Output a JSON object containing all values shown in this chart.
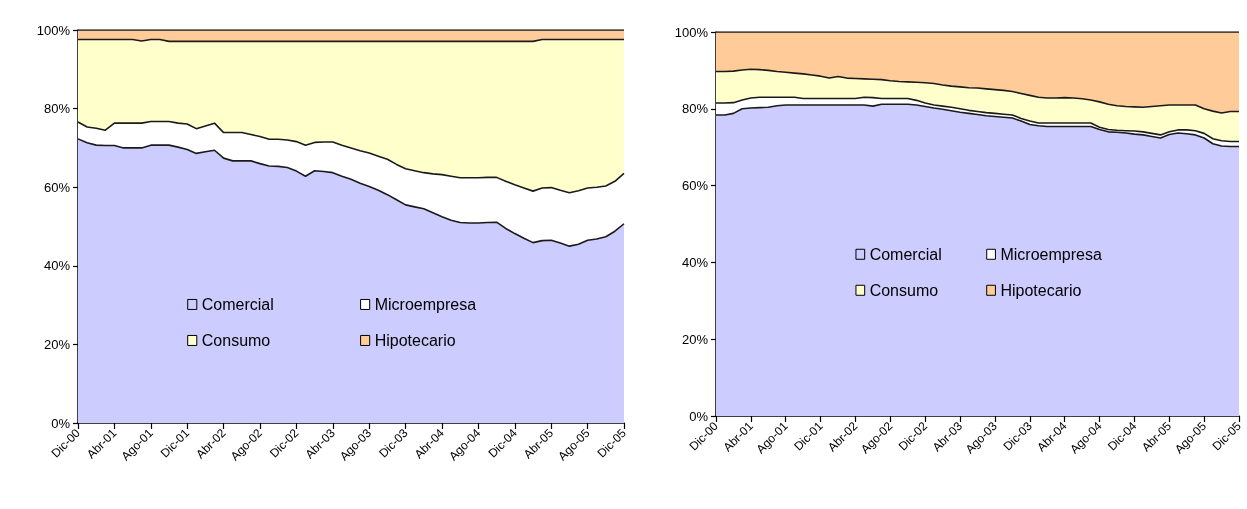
{
  "chart_data": [
    {
      "type": "area",
      "stacked": true,
      "categories": [
        "Dic-00",
        null,
        null,
        null,
        "Abr-01",
        null,
        null,
        null,
        "Ago-01",
        null,
        null,
        null,
        "Dic-01",
        null,
        null,
        null,
        "Abr-02",
        null,
        null,
        null,
        "Ago-02",
        null,
        null,
        null,
        "Dic-02",
        null,
        null,
        null,
        "Abr-03",
        null,
        null,
        null,
        "Ago-03",
        null,
        null,
        null,
        "Dic-03",
        null,
        null,
        null,
        "Abr-04",
        null,
        null,
        null,
        "Ago-04",
        null,
        null,
        null,
        "Dic-04",
        null,
        null,
        null,
        "Abr-05",
        null,
        null,
        null,
        "Ago-05",
        null,
        null,
        null,
        "Dic-05"
      ],
      "series": [
        {
          "name": "Comercial",
          "color": "#ccccff",
          "values": [
            72.3,
            71.3,
            70.7,
            70.6,
            70.6,
            70.0,
            70.0,
            70.0,
            70.7,
            70.7,
            70.7,
            70.2,
            69.6,
            68.6,
            69.0,
            69.4,
            67.4,
            66.7,
            66.7,
            66.7,
            66.0,
            65.4,
            65.3,
            65.0,
            64.1,
            62.8,
            64.2,
            64.0,
            63.7,
            62.8,
            62.0,
            61.0,
            60.2,
            59.2,
            58.1,
            56.8,
            55.5,
            55.0,
            54.5,
            53.5,
            52.5,
            51.6,
            51.0,
            50.9,
            50.9,
            51.0,
            51.1,
            49.5,
            48.2,
            47.0,
            45.9,
            46.4,
            46.5,
            45.8,
            45.0,
            45.5,
            46.5,
            46.8,
            47.4,
            48.8,
            50.7
          ]
        },
        {
          "name": "Microempresa",
          "color": "#ffffff",
          "values": [
            4.3,
            4.0,
            4.3,
            3.9,
            5.7,
            6.3,
            6.3,
            6.3,
            6.0,
            6.0,
            6.0,
            6.1,
            6.5,
            6.3,
            6.6,
            6.9,
            6.5,
            7.2,
            7.2,
            6.7,
            6.9,
            6.8,
            6.9,
            7.0,
            7.5,
            7.9,
            7.2,
            7.5,
            7.8,
            7.9,
            8.0,
            8.3,
            8.5,
            8.7,
            9.0,
            9.0,
            9.2,
            9.2,
            9.2,
            9.9,
            10.7,
            11.2,
            11.4,
            11.5,
            11.5,
            11.5,
            11.4,
            12.0,
            12.4,
            12.8,
            13.1,
            13.4,
            13.4,
            13.4,
            13.6,
            13.6,
            13.3,
            13.2,
            12.9,
            12.7,
            12.8
          ]
        },
        {
          "name": "Consumo",
          "color": "#ffffcc",
          "values": [
            21.0,
            22.3,
            22.6,
            23.1,
            21.3,
            21.3,
            21.3,
            20.9,
            20.9,
            20.9,
            20.4,
            20.8,
            21.0,
            22.2,
            21.5,
            20.8,
            23.2,
            23.2,
            23.2,
            23.7,
            24.2,
            24.9,
            24.9,
            25.1,
            25.5,
            26.4,
            25.7,
            25.6,
            25.6,
            26.4,
            27.1,
            27.8,
            28.4,
            29.2,
            30.0,
            31.3,
            32.4,
            32.9,
            33.4,
            33.7,
            33.9,
            34.3,
            34.7,
            34.7,
            34.7,
            34.6,
            34.6,
            35.6,
            36.5,
            37.3,
            38.1,
            37.8,
            37.7,
            38.4,
            39.0,
            38.5,
            37.8,
            37.6,
            37.3,
            36.1,
            34.1
          ]
        },
        {
          "name": "Hipotecario",
          "color": "#ffcc99",
          "values": [
            2.4,
            2.4,
            2.4,
            2.4,
            2.4,
            2.4,
            2.4,
            2.8,
            2.4,
            2.4,
            2.9,
            2.9,
            2.9,
            2.9,
            2.9,
            2.9,
            2.9,
            2.9,
            2.9,
            2.9,
            2.9,
            2.9,
            2.9,
            2.9,
            2.9,
            2.9,
            2.9,
            2.9,
            2.9,
            2.9,
            2.9,
            2.9,
            2.9,
            2.9,
            2.9,
            2.9,
            2.9,
            2.9,
            2.9,
            2.9,
            2.9,
            2.9,
            2.9,
            2.9,
            2.9,
            2.9,
            2.9,
            2.9,
            2.9,
            2.9,
            2.9,
            2.4,
            2.4,
            2.4,
            2.4,
            2.4,
            2.4,
            2.4,
            2.4,
            2.4,
            2.4
          ]
        }
      ],
      "ylim": [
        0,
        100
      ],
      "yticks": [
        {
          "value": 0,
          "label": "0%"
        },
        {
          "value": 20,
          "label": "20%"
        },
        {
          "value": 40,
          "label": "40%"
        },
        {
          "value": 60,
          "label": "60%"
        },
        {
          "value": 80,
          "label": "80%"
        },
        {
          "value": 100,
          "label": "100%"
        }
      ],
      "legend": "bottom"
    },
    {
      "type": "area",
      "stacked": true,
      "categories": [
        "Dic-00",
        null,
        null,
        null,
        "Abr-01",
        null,
        null,
        null,
        "Ago-01",
        null,
        null,
        null,
        "Dic-01",
        null,
        null,
        null,
        "Abr-02",
        null,
        null,
        null,
        "Ago-02",
        null,
        null,
        null,
        "Dic-02",
        null,
        null,
        null,
        "Abr-03",
        null,
        null,
        null,
        "Ago-03",
        null,
        null,
        null,
        "Dic-03",
        null,
        null,
        null,
        "Abr-04",
        null,
        null,
        null,
        "Ago-04",
        null,
        null,
        null,
        "Dic-04",
        null,
        null,
        null,
        "Abr-05",
        null,
        null,
        null,
        "Ago-05",
        null,
        null,
        null,
        "Dic-05"
      ],
      "series": [
        {
          "name": "Comercial",
          "color": "#ccccff",
          "values": [
            78.4,
            78.4,
            78.8,
            80.0,
            80.2,
            80.3,
            80.4,
            80.8,
            81.0,
            81.0,
            81.0,
            81.0,
            81.0,
            81.0,
            81.0,
            81.0,
            81.0,
            81.0,
            80.7,
            81.2,
            81.2,
            81.2,
            81.2,
            81.0,
            80.6,
            80.2,
            79.9,
            79.5,
            79.1,
            78.8,
            78.5,
            78.2,
            78.0,
            77.8,
            77.6,
            76.8,
            75.9,
            75.6,
            75.4,
            75.4,
            75.4,
            75.4,
            75.4,
            75.4,
            74.6,
            74.0,
            73.9,
            73.7,
            73.4,
            73.2,
            72.8,
            72.4,
            73.3,
            73.7,
            73.5,
            73.2,
            72.4,
            70.9,
            70.3,
            70.2,
            70.2
          ]
        },
        {
          "name": "Microempresa",
          "color": "#ffffff",
          "values": [
            3.1,
            3.1,
            2.8,
            2.3,
            2.6,
            2.7,
            2.6,
            2.2,
            2.0,
            2.0,
            1.7,
            1.7,
            1.7,
            1.7,
            1.7,
            1.7,
            1.7,
            2.0,
            2.2,
            1.5,
            1.5,
            1.5,
            1.5,
            1.2,
            0.9,
            0.8,
            0.8,
            0.9,
            0.9,
            0.8,
            0.8,
            0.8,
            0.8,
            0.8,
            0.8,
            0.7,
            0.9,
            0.7,
            0.9,
            0.9,
            0.9,
            0.9,
            0.9,
            0.9,
            0.6,
            0.6,
            0.5,
            0.6,
            0.8,
            0.8,
            0.8,
            0.8,
            0.7,
            0.8,
            1.0,
            1.1,
            1.2,
            1.3,
            1.4,
            1.3,
            1.3
          ]
        },
        {
          "name": "Consumo",
          "color": "#ffffcc",
          "values": [
            8.2,
            8.2,
            8.2,
            7.8,
            7.5,
            7.2,
            7.0,
            6.7,
            6.5,
            6.3,
            6.4,
            6.1,
            5.8,
            5.3,
            5.7,
            5.3,
            5.2,
            4.8,
            4.8,
            4.9,
            4.6,
            4.4,
            4.3,
            4.7,
            5.3,
            5.6,
            5.5,
            5.5,
            5.7,
            5.9,
            6.1,
            6.2,
            6.2,
            6.2,
            6.1,
            6.5,
            6.7,
            6.7,
            6.5,
            6.5,
            6.6,
            6.5,
            6.3,
            6.0,
            6.6,
            6.6,
            6.4,
            6.3,
            6.3,
            6.4,
            7.0,
            7.6,
            7.0,
            6.5,
            6.5,
            6.7,
            6.4,
            7.2,
            7.2,
            7.8,
            7.8
          ]
        },
        {
          "name": "Hipotecario",
          "color": "#ffcc99",
          "values": [
            10.3,
            10.3,
            10.2,
            9.9,
            9.7,
            9.8,
            10.0,
            10.3,
            10.5,
            10.7,
            10.9,
            11.2,
            11.5,
            12.0,
            11.6,
            12.0,
            12.1,
            12.2,
            12.3,
            12.4,
            12.7,
            12.9,
            13.0,
            13.1,
            13.2,
            13.4,
            13.8,
            14.1,
            14.3,
            14.5,
            14.6,
            14.8,
            15.0,
            15.2,
            15.5,
            16.0,
            16.5,
            17.0,
            17.2,
            17.2,
            17.1,
            17.2,
            17.4,
            17.7,
            18.2,
            18.8,
            19.2,
            19.4,
            19.5,
            19.6,
            19.4,
            19.2,
            19.0,
            19.0,
            19.0,
            19.0,
            20.0,
            20.6,
            21.1,
            20.7,
            20.7
          ]
        }
      ],
      "ylim": [
        0,
        100
      ],
      "yticks": [
        {
          "value": 0,
          "label": "0%"
        },
        {
          "value": 20,
          "label": "20%"
        },
        {
          "value": 40,
          "label": "40%"
        },
        {
          "value": 60,
          "label": "60%"
        },
        {
          "value": 80,
          "label": "80%"
        },
        {
          "value": 100,
          "label": "100%"
        }
      ],
      "legend": "center"
    }
  ]
}
